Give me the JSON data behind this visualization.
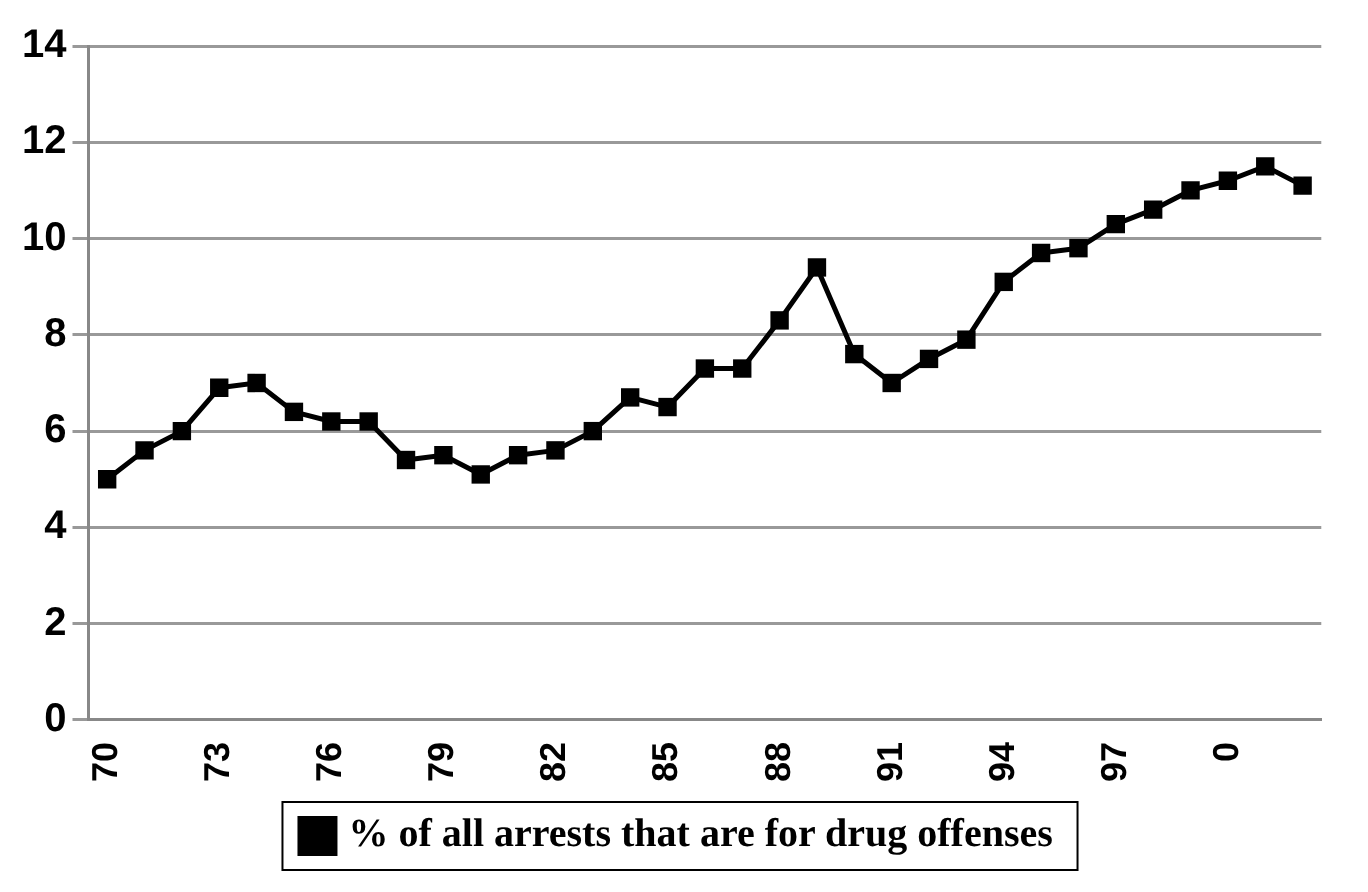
{
  "chart_data": {
    "type": "line",
    "categories": [
      "70",
      null,
      null,
      "73",
      null,
      null,
      "76",
      null,
      null,
      "79",
      null,
      null,
      "82",
      null,
      null,
      "85",
      null,
      null,
      "88",
      null,
      null,
      "91",
      null,
      null,
      "94",
      null,
      null,
      "97",
      null,
      null,
      "0",
      null,
      null
    ],
    "series": [
      {
        "name": "% of all arrests that are for drug offenses",
        "color": "#000000",
        "values": [
          5.0,
          5.6,
          6.0,
          6.9,
          7.0,
          6.4,
          6.2,
          6.2,
          5.4,
          5.5,
          5.1,
          5.5,
          5.6,
          6.0,
          6.7,
          6.5,
          7.3,
          7.3,
          8.3,
          9.4,
          7.6,
          7.0,
          7.5,
          7.9,
          9.1,
          9.7,
          9.8,
          10.3,
          10.6,
          11.0,
          11.2,
          11.5,
          11.1
        ]
      }
    ],
    "ylim": [
      0,
      14
    ],
    "yticks": [
      0,
      2,
      4,
      6,
      8,
      10,
      12,
      14
    ],
    "grid": "y",
    "legend": "bottom",
    "marker": "square",
    "line_style": "solid"
  }
}
